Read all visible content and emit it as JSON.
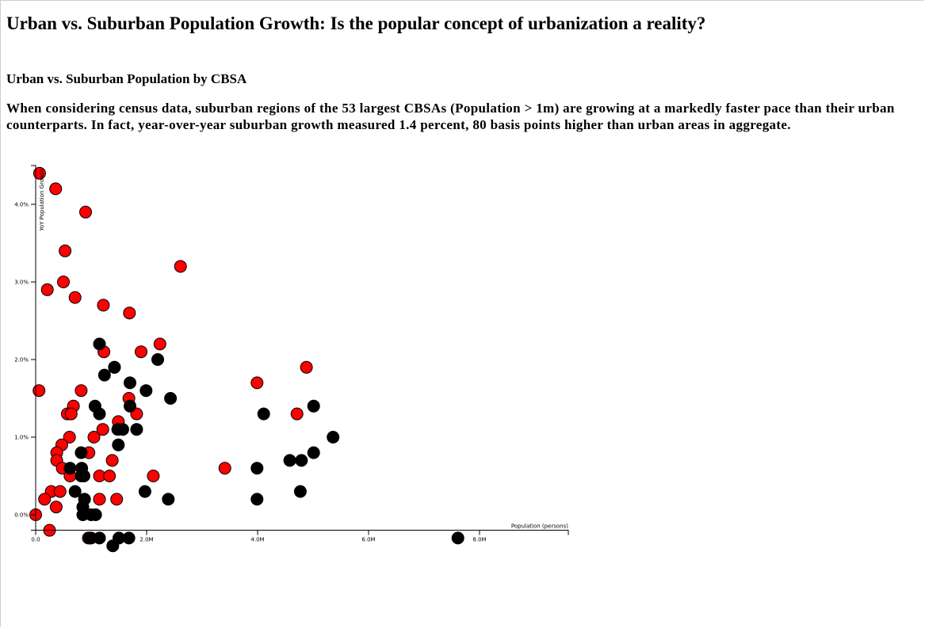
{
  "page": {
    "title": "Urban vs. Suburban Population Growth: Is the popular concept of urbanization a reality?",
    "subtitle": "Urban vs. Suburban Population by CBSA",
    "description": "When considering census data, suburban regions of the 53 largest CBSAs (Population > 1m) are growing at a markedly faster pace than their urban counterparts. In fact, year-over-year suburban growth measured 1.4 percent, 80 basis points higher than urban areas in aggregate."
  },
  "chart_data": {
    "type": "scatter",
    "xlabel": "Population (persons)",
    "ylabel": "YoY Population Growth",
    "xlim": [
      0,
      9600000
    ],
    "ylim": [
      -0.2,
      4.5
    ],
    "x_ticks": [
      {
        "value": 0,
        "label": "0.0"
      },
      {
        "value": 2000000,
        "label": "2.0M"
      },
      {
        "value": 4000000,
        "label": "4.0M"
      },
      {
        "value": 6000000,
        "label": "6.0M"
      },
      {
        "value": 8000000,
        "label": "8.0M"
      }
    ],
    "y_ticks": [
      {
        "value": 0,
        "label": "0.0%"
      },
      {
        "value": 1,
        "label": "1.0%"
      },
      {
        "value": 2,
        "label": "2.0%"
      },
      {
        "value": 3,
        "label": "3.0%"
      },
      {
        "value": 4,
        "label": "4.0%"
      }
    ],
    "colors": {
      "series_red": "#ff0000",
      "series_black": "#000000"
    },
    "series": [
      {
        "color": "red",
        "points": [
          [
            70000,
            4.4
          ],
          [
            360000,
            4.2
          ],
          [
            900000,
            3.9
          ],
          [
            530000,
            3.4
          ],
          [
            2610000,
            3.2
          ],
          [
            500000,
            3.0
          ],
          [
            210000,
            2.9
          ],
          [
            710000,
            2.8
          ],
          [
            1220000,
            2.7
          ],
          [
            1690000,
            2.6
          ],
          [
            2240000,
            2.2
          ],
          [
            1900000,
            2.1
          ],
          [
            1230000,
            2.1
          ],
          [
            1420000,
            1.9
          ],
          [
            4880000,
            1.9
          ],
          [
            3990000,
            1.7
          ],
          [
            60000,
            1.6
          ],
          [
            820000,
            1.6
          ],
          [
            1680000,
            1.5
          ],
          [
            680000,
            1.4
          ],
          [
            570000,
            1.3
          ],
          [
            640000,
            1.3
          ],
          [
            1820000,
            1.3
          ],
          [
            4710000,
            1.3
          ],
          [
            1490000,
            1.2
          ],
          [
            1210000,
            1.1
          ],
          [
            610000,
            1.0
          ],
          [
            1050000,
            1.0
          ],
          [
            470000,
            0.9
          ],
          [
            380000,
            0.8
          ],
          [
            960000,
            0.8
          ],
          [
            1380000,
            0.7
          ],
          [
            380000,
            0.7
          ],
          [
            480000,
            0.6
          ],
          [
            3410000,
            0.6
          ],
          [
            620000,
            0.5
          ],
          [
            1150000,
            0.5
          ],
          [
            1330000,
            0.5
          ],
          [
            2120000,
            0.5
          ],
          [
            280000,
            0.3
          ],
          [
            440000,
            0.3
          ],
          [
            160000,
            0.2
          ],
          [
            1150000,
            0.2
          ],
          [
            1460000,
            0.2
          ],
          [
            370000,
            0.1
          ],
          [
            0,
            0.0
          ],
          [
            250000,
            -0.2
          ],
          [
            950000,
            -0.3
          ],
          [
            1000000,
            -0.3
          ]
        ]
      },
      {
        "color": "black",
        "points": [
          [
            1150000,
            2.2
          ],
          [
            2200000,
            2.0
          ],
          [
            1420000,
            1.9
          ],
          [
            1240000,
            1.8
          ],
          [
            1700000,
            1.7
          ],
          [
            1990000,
            1.6
          ],
          [
            2430000,
            1.5
          ],
          [
            1070000,
            1.4
          ],
          [
            1700000,
            1.4
          ],
          [
            5010000,
            1.4
          ],
          [
            1150000,
            1.3
          ],
          [
            4110000,
            1.3
          ],
          [
            1820000,
            1.1
          ],
          [
            1480000,
            1.1
          ],
          [
            1570000,
            1.1
          ],
          [
            5360000,
            1.0
          ],
          [
            1490000,
            0.9
          ],
          [
            820000,
            0.8
          ],
          [
            5010000,
            0.8
          ],
          [
            4580000,
            0.7
          ],
          [
            4790000,
            0.7
          ],
          [
            620000,
            0.6
          ],
          [
            830000,
            0.6
          ],
          [
            3990000,
            0.6
          ],
          [
            820000,
            0.5
          ],
          [
            870000,
            0.5
          ],
          [
            710000,
            0.3
          ],
          [
            1970000,
            0.3
          ],
          [
            4770000,
            0.3
          ],
          [
            880000,
            0.2
          ],
          [
            2390000,
            0.2
          ],
          [
            3990000,
            0.2
          ],
          [
            850000,
            0.1
          ],
          [
            850000,
            0.0
          ],
          [
            1000000,
            0.0
          ],
          [
            1080000,
            0.0
          ],
          [
            970000,
            -0.3
          ],
          [
            1150000,
            -0.3
          ],
          [
            1500000,
            -0.3
          ],
          [
            1680000,
            -0.3
          ],
          [
            7610000,
            -0.3
          ],
          [
            1390000,
            -0.4
          ]
        ]
      }
    ]
  }
}
